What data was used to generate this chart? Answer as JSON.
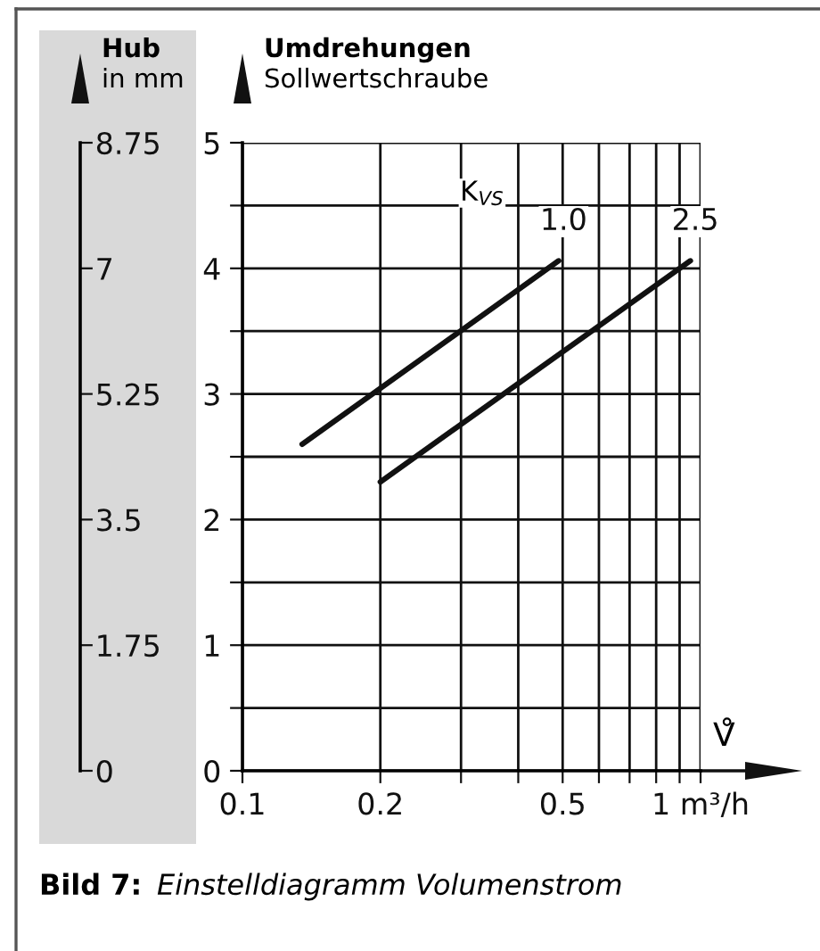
{
  "chart_data": {
    "type": "line",
    "xlabel": "V̊",
    "ylabel": "Umdrehungen\nSollwertschraube",
    "y2label": "Hub\nin mm",
    "log": "x",
    "xlim": [
      0.1,
      1
    ],
    "ylim": [
      0,
      5
    ],
    "y2lim": [
      0,
      8.75
    ],
    "xticks": [
      0.1,
      0.2,
      {
        "value": 0.3,
        "label": null
      },
      {
        "value": 0.4,
        "label": null
      },
      0.5,
      {
        "value": 0.6,
        "label": null
      },
      {
        "value": 0.7,
        "label": null
      },
      {
        "value": 0.8,
        "label": null
      },
      {
        "value": 0.9,
        "label": null
      },
      {
        "value": 1,
        "label": "1 m³/h"
      }
    ],
    "yticks": [
      0,
      {
        "value": 0.5,
        "label": null
      },
      1,
      {
        "value": 1.5,
        "label": null
      },
      2,
      {
        "value": 2.5,
        "label": null
      },
      3,
      {
        "value": 3.5,
        "label": null
      },
      4,
      {
        "value": 4.5,
        "label": null
      },
      5
    ],
    "y2ticks": [
      0,
      1.75,
      3.5,
      5.25,
      7,
      8.75
    ],
    "grid": true,
    "marker": "none",
    "line_style": "solid",
    "series": [
      {
        "name": "1.0",
        "color": "#111111",
        "x": [
          0.135,
          0.49
        ],
        "values": [
          2.6,
          4.06
        ]
      },
      {
        "name": "2.5",
        "color": "#111111",
        "x": [
          0.2,
          0.95
        ],
        "values": [
          2.3,
          4.06
        ]
      }
    ],
    "annotations": [
      "K$_{VS}$",
      "Bild 7:",
      "Einstelldiagramm Volumenstrom"
    ]
  }
}
